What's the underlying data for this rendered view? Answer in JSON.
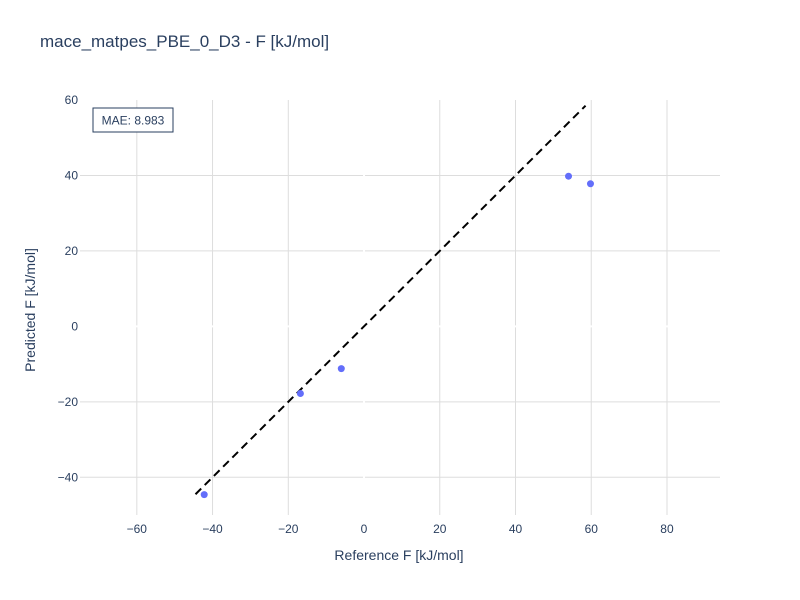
{
  "chart_data": {
    "type": "scatter",
    "title": "mace_matpes_PBE_0_D3 - F [kJ/mol]",
    "xlabel": "Reference F [kJ/mol]",
    "ylabel": "Predicted F [kJ/mol]",
    "xlim": [
      -75,
      94
    ],
    "ylim": [
      -50,
      60
    ],
    "x_ticks": [
      -60,
      -40,
      -20,
      0,
      20,
      40,
      60,
      80
    ],
    "y_ticks": [
      -40,
      -20,
      0,
      20,
      40,
      60
    ],
    "x_tick_labels": [
      "−60",
      "−40",
      "−20",
      "0",
      "20",
      "40",
      "60",
      "80"
    ],
    "y_tick_labels": [
      "−40",
      "−20",
      "0",
      "20",
      "40",
      "60"
    ],
    "grid": true,
    "points": [
      {
        "x": -42.2,
        "y": -44.6
      },
      {
        "x": -16.8,
        "y": -17.8
      },
      {
        "x": -6.0,
        "y": -11.2
      },
      {
        "x": 54.0,
        "y": 39.8
      },
      {
        "x": 59.8,
        "y": 37.8
      }
    ],
    "reference_line": {
      "x": [
        -44.5,
        58.5
      ],
      "y": [
        -44.5,
        58.5
      ],
      "style": "dashed"
    },
    "annotation": "MAE: 8.983",
    "marker_color": "#636efa",
    "line_color": "#000000",
    "grid_color": "#dddddd"
  }
}
